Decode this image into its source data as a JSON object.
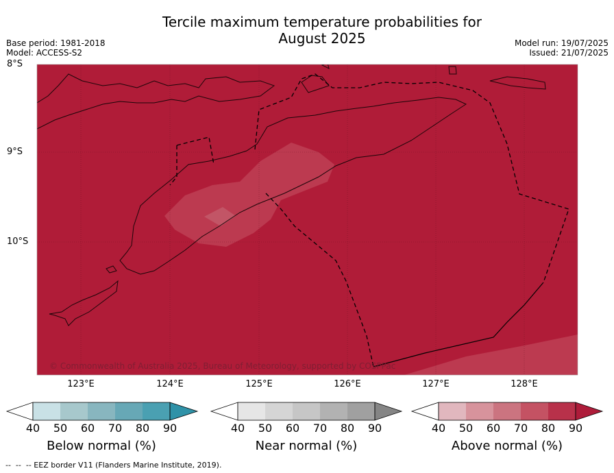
{
  "title_line1": "Tercile maximum temperature probabilities for",
  "title_line2": "August 2025",
  "base_period": "Base period: 1981-2018",
  "model": "Model: ACCESS-S2",
  "model_run": "Model run: 19/07/2025",
  "issued": "Issued: 21/07/2025",
  "lat_labels": [
    "8°S",
    "9°S",
    "10°S"
  ],
  "lon_labels": [
    "123°E",
    "124°E",
    "125°E",
    "126°E",
    "127°E",
    "128°E"
  ],
  "copyright": "© Commonwealth of Australia 2025, Bureau of Meteorology, supported by COSPPac",
  "colorbars": [
    {
      "label": "Below normal (%)",
      "ticks": [
        "40",
        "50",
        "60",
        "70",
        "80",
        "90"
      ],
      "colors": [
        "#c9e1e6",
        "#a7c8cc",
        "#88b6bf",
        "#67a8b6",
        "#4aa0b2",
        "#2f92a8"
      ]
    },
    {
      "label": "Near normal (%)",
      "ticks": [
        "40",
        "50",
        "60",
        "70",
        "80",
        "90"
      ],
      "colors": [
        "#e6e6e6",
        "#d5d5d5",
        "#c6c6c6",
        "#b2b2b2",
        "#a0a0a0",
        "#858585"
      ]
    },
    {
      "label": "Above normal (%)",
      "ticks": [
        "40",
        "50",
        "60",
        "70",
        "80",
        "90"
      ],
      "colors": [
        "#e1b7be",
        "#d7939c",
        "#cb7480",
        "#c45263",
        "#b8314a",
        "#ae1c3a"
      ]
    }
  ],
  "footer": "--  --  -- EEZ border V11 (Flanders Marine Institute, 2019).",
  "map_colors": {
    "above_90": "#b01c38",
    "above_80": "#bc3a50",
    "above_70": "#c25566"
  }
}
